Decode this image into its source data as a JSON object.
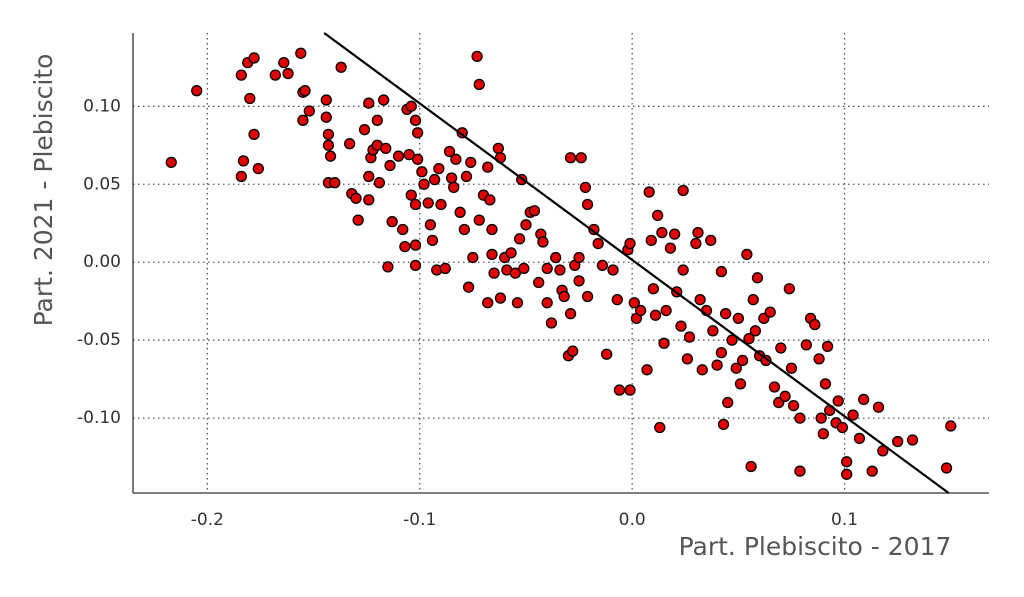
{
  "chart_data": {
    "type": "scatter",
    "x_label": "Part. Plebiscito - 2017",
    "y_label": "Part. 2021 - Plebiscito",
    "xlim": [
      -0.235,
      0.168
    ],
    "ylim": [
      -0.148,
      0.147
    ],
    "xticks": [
      -0.2,
      -0.1,
      {
        "value": 0,
        "label": "0.0"
      },
      0.1
    ],
    "yticks": [
      {
        "value": 0.1,
        "label": "0.10"
      },
      0.05,
      {
        "value": 0,
        "label": "0.00"
      },
      -0.05,
      {
        "value": -0.1,
        "label": "-0.10"
      }
    ],
    "grid": true,
    "color": "#e00000",
    "edge_color": "#000000",
    "fit_line": {
      "x": [
        -0.145,
        0.149
      ],
      "y": [
        0.147,
        -0.148
      ],
      "color": "#000000"
    },
    "x": [
      -0.217,
      -0.205,
      -0.184,
      -0.181,
      -0.178,
      -0.18,
      -0.178,
      -0.183,
      -0.184,
      -0.176,
      -0.168,
      -0.164,
      -0.162,
      -0.156,
      -0.155,
      -0.154,
      -0.155,
      -0.152,
      -0.137,
      -0.144,
      -0.144,
      -0.143,
      -0.143,
      -0.142,
      -0.143,
      -0.14,
      -0.133,
      -0.132,
      -0.13,
      -0.129,
      -0.126,
      -0.124,
      -0.123,
      -0.124,
      -0.122,
      -0.12,
      -0.12,
      -0.117,
      -0.116,
      -0.114,
      -0.119,
      -0.124,
      -0.115,
      -0.113,
      -0.11,
      -0.108,
      -0.107,
      -0.106,
      -0.104,
      -0.102,
      -0.101,
      -0.101,
      -0.105,
      -0.104,
      -0.102,
      -0.102,
      -0.102,
      -0.099,
      -0.098,
      -0.096,
      -0.095,
      -0.094,
      -0.093,
      -0.091,
      -0.092,
      -0.09,
      -0.088,
      -0.086,
      -0.085,
      -0.084,
      -0.083,
      -0.081,
      -0.08,
      -0.079,
      -0.078,
      -0.076,
      -0.075,
      -0.077,
      -0.073,
      -0.072,
      -0.072,
      -0.07,
      -0.068,
      -0.067,
      -0.066,
      -0.066,
      -0.065,
      -0.068,
      -0.063,
      -0.062,
      -0.062,
      -0.06,
      -0.059,
      -0.057,
      -0.055,
      -0.054,
      -0.053,
      -0.052,
      -0.051,
      -0.05,
      -0.048,
      -0.046,
      -0.044,
      -0.043,
      -0.042,
      -0.04,
      -0.04,
      -0.038,
      -0.036,
      -0.034,
      -0.033,
      -0.032,
      -0.029,
      -0.029,
      -0.03,
      -0.028,
      -0.027,
      -0.025,
      -0.025,
      -0.024,
      -0.022,
      -0.021,
      -0.021,
      -0.018,
      -0.016,
      -0.014,
      -0.012,
      -0.009,
      -0.007,
      -0.006,
      -0.002,
      -0.001,
      -0.001,
      0.001,
      0.002,
      0.004,
      0.007,
      0.008,
      0.009,
      0.01,
      0.011,
      0.012,
      0.013,
      0.014,
      0.015,
      0.016,
      0.018,
      0.02,
      0.021,
      0.023,
      0.024,
      0.024,
      0.026,
      0.027,
      0.03,
      0.031,
      0.032,
      0.033,
      0.035,
      0.037,
      0.038,
      0.04,
      0.042,
      0.042,
      0.043,
      0.044,
      0.045,
      0.047,
      0.049,
      0.05,
      0.051,
      0.052,
      0.054,
      0.055,
      0.056,
      0.057,
      0.058,
      0.059,
      0.06,
      0.062,
      0.063,
      0.065,
      0.067,
      0.069,
      0.07,
      0.072,
      0.074,
      0.075,
      0.076,
      0.079,
      0.079,
      0.082,
      0.084,
      0.086,
      0.088,
      0.089,
      0.09,
      0.091,
      0.092,
      0.093,
      0.096,
      0.097,
      0.099,
      0.101,
      0.101,
      0.104,
      0.107,
      0.109,
      0.113,
      0.116,
      0.118,
      0.125,
      0.132,
      0.148,
      0.15
    ],
    "values": [
      0.064,
      0.11,
      0.12,
      0.128,
      0.131,
      0.105,
      0.082,
      0.065,
      0.055,
      0.06,
      0.12,
      0.128,
      0.121,
      0.134,
      0.109,
      0.11,
      0.091,
      0.097,
      0.125,
      0.104,
      0.093,
      0.082,
      0.075,
      0.068,
      0.051,
      0.051,
      0.076,
      0.044,
      0.041,
      0.027,
      0.085,
      0.102,
      0.067,
      0.055,
      0.072,
      0.075,
      0.091,
      0.104,
      0.073,
      0.062,
      0.051,
      0.04,
      -0.003,
      0.026,
      0.068,
      0.021,
      0.01,
      0.098,
      0.1,
      0.091,
      0.083,
      0.066,
      0.069,
      0.043,
      0.037,
      0.011,
      -0.002,
      0.058,
      0.05,
      0.038,
      0.024,
      0.014,
      0.053,
      0.06,
      -0.005,
      0.037,
      -0.004,
      0.071,
      0.054,
      0.048,
      0.066,
      0.032,
      0.083,
      0.021,
      0.055,
      0.064,
      0.003,
      -0.016,
      0.132,
      0.114,
      0.027,
      0.043,
      0.061,
      0.04,
      0.021,
      0.005,
      -0.007,
      -0.026,
      0.073,
      0.067,
      -0.023,
      0.003,
      -0.005,
      0.006,
      -0.007,
      -0.026,
      0.015,
      0.053,
      -0.004,
      0.024,
      0.032,
      0.033,
      -0.013,
      0.018,
      0.013,
      -0.004,
      -0.026,
      -0.039,
      0.003,
      -0.005,
      -0.018,
      -0.022,
      0.067,
      -0.033,
      -0.06,
      -0.057,
      -0.002,
      -0.012,
      0.003,
      0.067,
      0.048,
      0.037,
      -0.022,
      0.021,
      0.012,
      -0.002,
      -0.059,
      -0.005,
      -0.024,
      -0.082,
      0.008,
      0.012,
      -0.082,
      -0.026,
      -0.036,
      -0.031,
      -0.069,
      0.045,
      0.014,
      -0.017,
      -0.034,
      0.03,
      -0.106,
      0.019,
      -0.052,
      -0.031,
      0.009,
      0.018,
      -0.019,
      -0.041,
      0.046,
      -0.005,
      -0.062,
      -0.048,
      0.012,
      0.019,
      -0.024,
      -0.069,
      -0.031,
      0.014,
      -0.044,
      -0.066,
      -0.058,
      -0.006,
      -0.104,
      -0.033,
      -0.09,
      -0.05,
      -0.068,
      -0.036,
      -0.078,
      -0.063,
      0.005,
      -0.049,
      -0.131,
      -0.024,
      -0.044,
      -0.01,
      -0.06,
      -0.036,
      -0.063,
      -0.032,
      -0.08,
      -0.09,
      -0.055,
      -0.086,
      -0.017,
      -0.068,
      -0.092,
      -0.1,
      -0.134,
      -0.053,
      -0.036,
      -0.04,
      -0.062,
      -0.1,
      -0.11,
      -0.078,
      -0.054,
      -0.095,
      -0.103,
      -0.089,
      -0.106,
      -0.128,
      -0.136,
      -0.098,
      -0.113,
      -0.088,
      -0.134,
      -0.093,
      -0.121,
      -0.115,
      -0.114,
      -0.132,
      -0.105
    ]
  }
}
